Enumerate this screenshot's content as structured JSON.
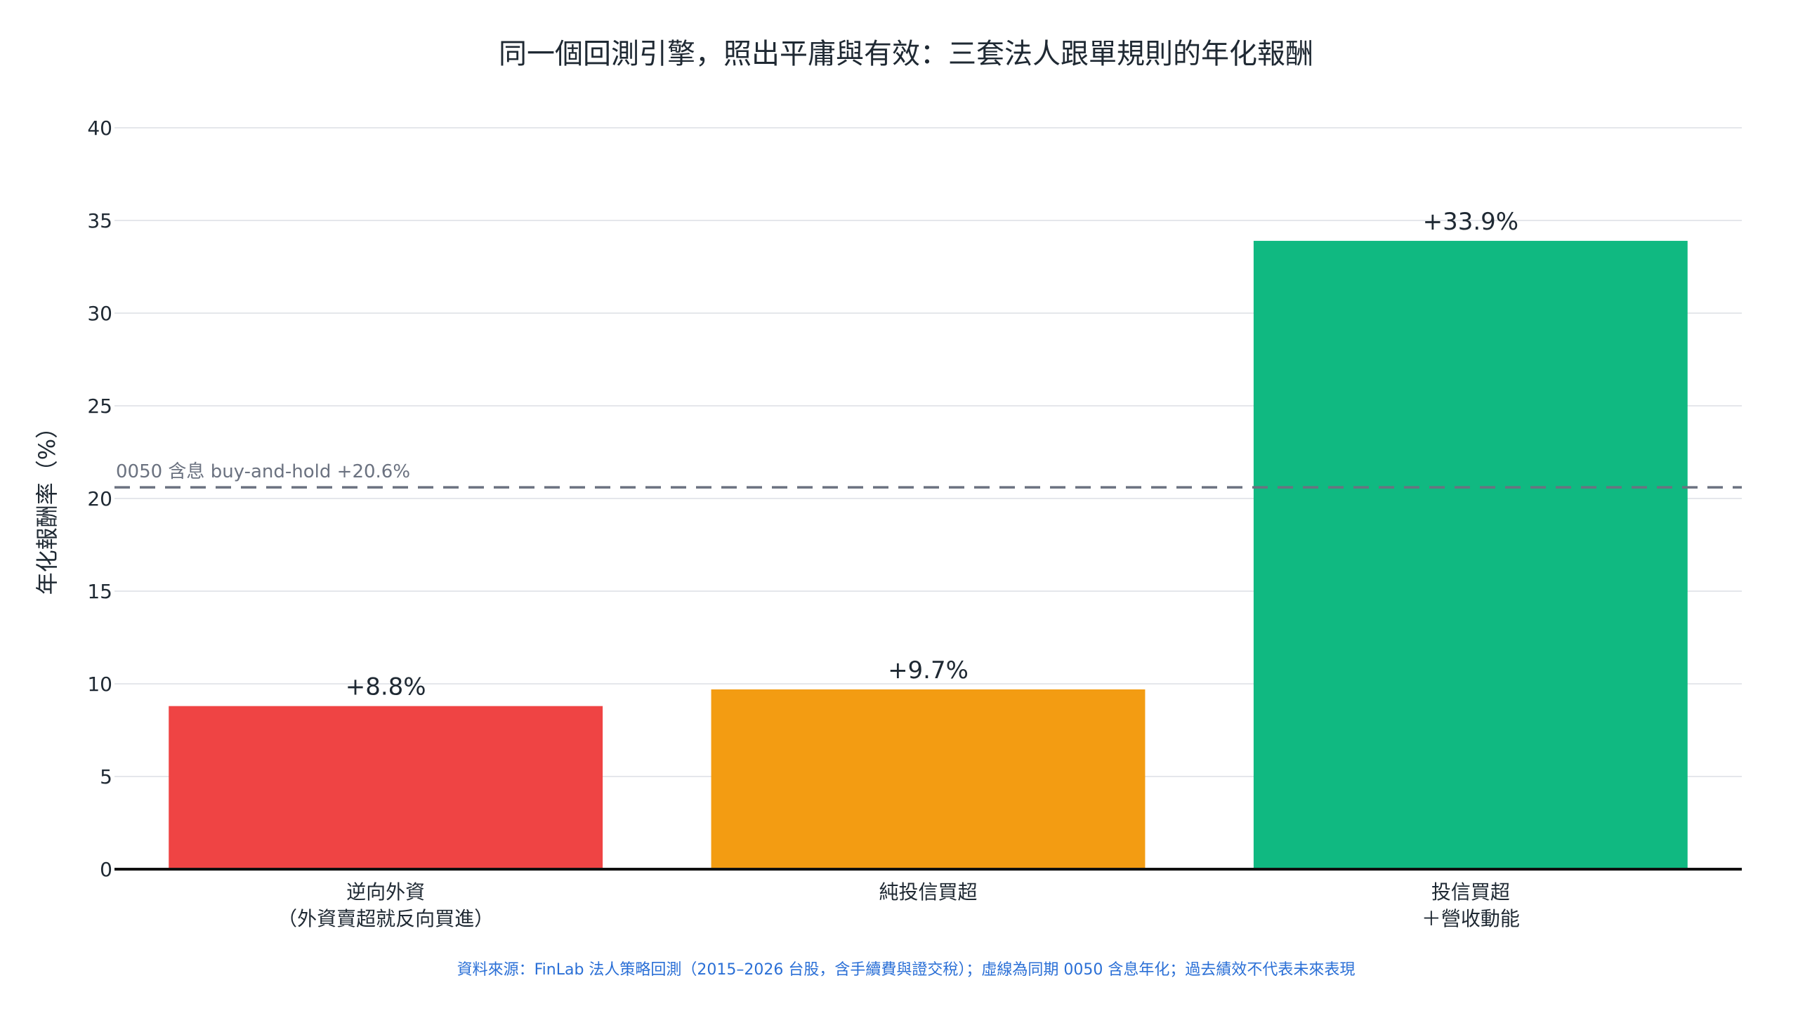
{
  "chart_data": {
    "type": "bar",
    "title": "同一個回測引擎，照出平庸與有效：三套法人跟單規則的年化報酬",
    "ylabel": "年化報酬率（%）",
    "xlabel": "",
    "ylim": [
      0,
      40
    ],
    "yticks": [
      "0",
      "5",
      "10",
      "15",
      "20",
      "25",
      "30",
      "35",
      "40"
    ],
    "grid": true,
    "categories": [
      [
        "逆向外資",
        "（外資賣超就反向買進）"
      ],
      [
        "純投信買超"
      ],
      [
        "投信買超",
        "＋營收動能"
      ]
    ],
    "values": [
      8.8,
      9.7,
      33.9
    ],
    "data_labels": [
      "+8.8%",
      "+9.7%",
      "+33.9%"
    ],
    "colors": [
      "#ef4444",
      "#f39c12",
      "#10b981"
    ],
    "reference_line": {
      "value": 20.6,
      "label": "0050 含息 buy-and-hold +20.6%",
      "color": "#6b7280",
      "style": "dashed"
    },
    "source_note": "資料來源：FinLab 法人策略回測（2015–2026 台股，含手續費與證交稅）；虛線為同期 0050 含息年化；過去績效不代表未來表現",
    "source_color": "#2a6fd6"
  }
}
